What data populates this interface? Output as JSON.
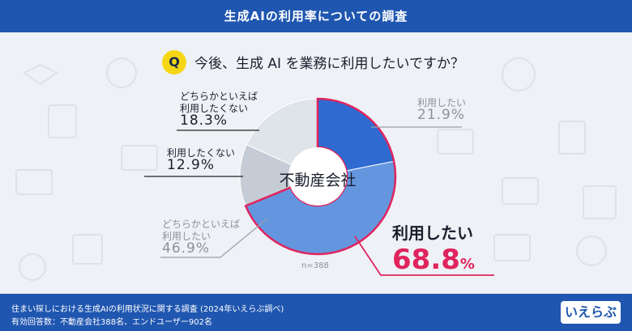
{
  "header": {
    "title": "生成AIの利用率についての調査"
  },
  "question": {
    "badge": "Q",
    "text": "今後、生成 AI を業務に利用したいですか？"
  },
  "chart_data": {
    "type": "pie",
    "center_label": "不動産会社",
    "sample_label": "n=388",
    "slices": [
      {
        "label": "利用したい",
        "value": 21.9,
        "display": "21.9%",
        "color": "#2f6ad1"
      },
      {
        "label": "どちらかといえば 利用したい",
        "value": 46.9,
        "display": "46.9%",
        "color": "#6496df"
      },
      {
        "label": "利用したくない",
        "value": 12.9,
        "display": "12.9%",
        "color": "#c6ccd6"
      },
      {
        "label": "どちらかといえば 利用したくない",
        "value": 18.3,
        "display": "18.3%",
        "color": "#dfe3ea"
      }
    ],
    "highlight": {
      "label": "利用したい",
      "value": 68.8,
      "display": "68.8%",
      "color": "#e0245e"
    }
  },
  "labels": {
    "want": {
      "line1": "利用したい",
      "pct": "21.9%"
    },
    "rather_want": {
      "line1": "どちらかといえば",
      "line2": "利用したい",
      "pct": "46.9%"
    },
    "dont_want": {
      "line1": "利用したくない",
      "pct": "12.9%"
    },
    "rather_dont": {
      "line1": "どちらかといえば",
      "line2": "利用したくない",
      "pct": "18.3%"
    },
    "highlight": {
      "line1": "利用したい",
      "pct": "68.8",
      "unit": "%"
    }
  },
  "footer": {
    "line1": "住まい探しにおける生成AIの利用状況に関する調査 (2024年いえらぶ調べ)",
    "line2": "有効回答数：不動産会社388名、エンドユーザー902名",
    "logo": "いえらぶ"
  }
}
